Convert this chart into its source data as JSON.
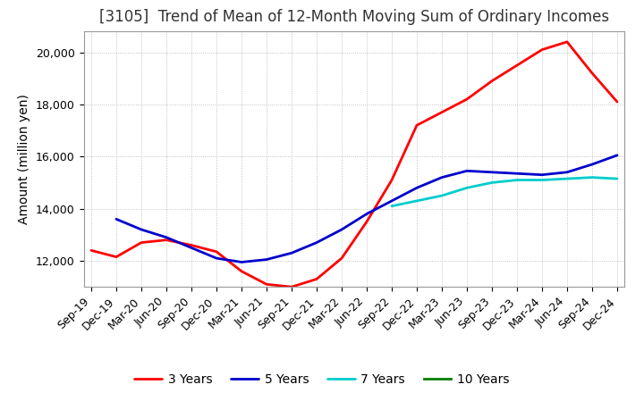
{
  "title": "[3105]  Trend of Mean of 12-Month Moving Sum of Ordinary Incomes",
  "ylabel": "Amount (million yen)",
  "ylim": [
    11000,
    20800
  ],
  "yticks": [
    12000,
    14000,
    16000,
    18000,
    20000
  ],
  "x_labels": [
    "Sep-19",
    "Dec-19",
    "Mar-20",
    "Jun-20",
    "Sep-20",
    "Dec-20",
    "Mar-21",
    "Jun-21",
    "Sep-21",
    "Dec-21",
    "Mar-22",
    "Jun-22",
    "Sep-22",
    "Dec-22",
    "Mar-23",
    "Jun-23",
    "Sep-23",
    "Dec-23",
    "Mar-24",
    "Jun-24",
    "Sep-24",
    "Dec-24"
  ],
  "series": {
    "3 Years": {
      "color": "#ff0000",
      "values": [
        12400,
        12150,
        12700,
        12800,
        12600,
        12350,
        11600,
        11100,
        11000,
        11300,
        12100,
        13500,
        15100,
        17200,
        17700,
        18200,
        18900,
        19500,
        20100,
        20400,
        19200,
        18100
      ]
    },
    "5 Years": {
      "color": "#0000cc",
      "values": [
        null,
        13600,
        13200,
        12900,
        12500,
        12100,
        11950,
        12050,
        12300,
        12700,
        13200,
        13800,
        14300,
        14800,
        15200,
        15450,
        15400,
        15350,
        15300,
        15400,
        15700,
        16050
      ]
    },
    "7 Years": {
      "color": "#00cccc",
      "values": [
        null,
        null,
        null,
        null,
        null,
        null,
        null,
        null,
        null,
        null,
        null,
        null,
        14100,
        14300,
        14500,
        14800,
        15000,
        15100,
        15100,
        15150,
        15200,
        15150
      ]
    },
    "10 Years": {
      "color": "#008000",
      "values": [
        null,
        null,
        null,
        null,
        null,
        null,
        null,
        null,
        null,
        null,
        null,
        null,
        null,
        null,
        null,
        null,
        null,
        null,
        null,
        null,
        null,
        null
      ]
    }
  },
  "background_color": "#ffffff",
  "grid_color": "#aaaaaa",
  "title_fontsize": 12,
  "axis_fontsize": 10,
  "tick_fontsize": 9,
  "legend_fontsize": 10
}
